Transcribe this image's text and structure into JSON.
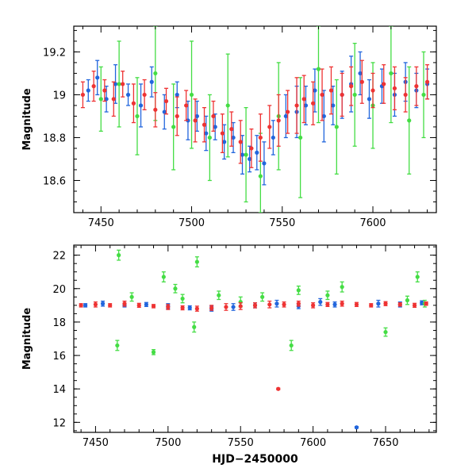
{
  "chart_data": [
    {
      "type": "scatter",
      "title": "",
      "xlabel": "",
      "ylabel": "Magnitude",
      "xlim": [
        7435,
        7635
      ],
      "ylim": [
        19.32,
        18.45
      ],
      "y_inverted": true,
      "xticks": [
        7450,
        7500,
        7550,
        7600
      ],
      "xticklabels": [
        "7450",
        "7500",
        "7550",
        "7600"
      ],
      "yticks": [
        18.6,
        18.8,
        19,
        19.2
      ],
      "yticklabels": [
        "18.6",
        "18.8",
        "19",
        "19.2"
      ],
      "grid": false,
      "legend": "none",
      "error_bars": true,
      "series": [
        {
          "color": "#2266dd",
          "x": [
            7443,
            7448,
            7453,
            7458,
            7465,
            7472,
            7478,
            7485,
            7492,
            7498,
            7503,
            7508,
            7513,
            7518,
            7523,
            7528,
            7532,
            7536,
            7540,
            7545,
            7552,
            7558,
            7563,
            7568,
            7573,
            7578,
            7583,
            7588,
            7593,
            7598,
            7605,
            7612,
            7618,
            7624,
            7630
          ],
          "y": [
            19.02,
            19.08,
            18.98,
            19.05,
            19.0,
            18.95,
            19.06,
            18.92,
            19.0,
            18.88,
            18.9,
            18.82,
            18.85,
            18.78,
            18.8,
            18.72,
            18.7,
            18.73,
            18.68,
            18.8,
            18.9,
            18.92,
            18.95,
            19.02,
            18.9,
            18.95,
            19.0,
            19.05,
            19.1,
            18.98,
            19.04,
            19.0,
            19.06,
            19.02,
            19.05
          ],
          "err": [
            0.05,
            0.08,
            0.06,
            0.09,
            0.05,
            0.1,
            0.07,
            0.08,
            0.06,
            0.09,
            0.07,
            0.08,
            0.06,
            0.08,
            0.07,
            0.09,
            0.06,
            0.08,
            0.1,
            0.08,
            0.1,
            0.12,
            0.09,
            0.1,
            0.12,
            0.09,
            0.11,
            0.13,
            0.1,
            0.09,
            0.08,
            0.1,
            0.09,
            0.08,
            0.07
          ]
        },
        {
          "color": "#44dd44",
          "x": [
            7450,
            7460,
            7470,
            7480,
            7490,
            7500,
            7510,
            7520,
            7530,
            7538,
            7548,
            7560,
            7570,
            7580,
            7590,
            7600,
            7610,
            7620,
            7628
          ],
          "y": [
            18.98,
            19.05,
            18.9,
            19.1,
            18.85,
            19.0,
            18.8,
            18.95,
            18.72,
            18.62,
            18.9,
            18.8,
            19.12,
            18.85,
            19.0,
            18.95,
            19.1,
            18.88,
            19.0
          ],
          "err": [
            0.15,
            0.2,
            0.18,
            0.22,
            0.2,
            0.25,
            0.2,
            0.24,
            0.22,
            0.2,
            0.25,
            0.28,
            0.25,
            0.22,
            0.24,
            0.2,
            0.23,
            0.25,
            0.2
          ]
        },
        {
          "color": "#ee3333",
          "x": [
            7440,
            7446,
            7452,
            7457,
            7462,
            7468,
            7474,
            7480,
            7486,
            7492,
            7497,
            7502,
            7507,
            7512,
            7517,
            7522,
            7527,
            7533,
            7538,
            7543,
            7548,
            7553,
            7558,
            7562,
            7567,
            7572,
            7577,
            7583,
            7588,
            7594,
            7600,
            7606,
            7612,
            7618,
            7624,
            7630
          ],
          "y": [
            19.0,
            19.04,
            19.02,
            18.98,
            19.05,
            18.96,
            19.0,
            18.93,
            18.97,
            18.9,
            18.95,
            18.88,
            18.86,
            18.9,
            18.82,
            18.84,
            18.78,
            18.75,
            18.8,
            18.85,
            18.88,
            18.92,
            18.95,
            18.98,
            18.96,
            19.0,
            19.02,
            19.0,
            19.04,
            19.06,
            19.02,
            19.05,
            19.03,
            19.0,
            19.04,
            19.06
          ],
          "err": [
            0.06,
            0.07,
            0.05,
            0.08,
            0.06,
            0.09,
            0.07,
            0.08,
            0.06,
            0.09,
            0.07,
            0.1,
            0.08,
            0.07,
            0.09,
            0.08,
            0.1,
            0.09,
            0.11,
            0.1,
            0.12,
            0.1,
            0.13,
            0.11,
            0.1,
            0.12,
            0.11,
            0.1,
            0.09,
            0.1,
            0.08,
            0.09,
            0.1,
            0.08,
            0.09,
            0.08
          ]
        }
      ]
    },
    {
      "type": "scatter",
      "title": "",
      "xlabel": "HJD−2450000",
      "ylabel": "Magnitude",
      "xlim": [
        7435,
        7685
      ],
      "ylim": [
        22.6,
        11.4
      ],
      "y_inverted": true,
      "xticks": [
        7450,
        7500,
        7550,
        7600,
        7650
      ],
      "xticklabels": [
        "7450",
        "7500",
        "7550",
        "7600",
        "7650"
      ],
      "yticks": [
        12,
        14,
        16,
        18,
        20,
        22
      ],
      "yticklabels": [
        "12",
        "14",
        "16",
        "18",
        "20",
        "22"
      ],
      "grid": false,
      "legend": "none",
      "error_bars": true,
      "series": [
        {
          "color": "#2266dd",
          "x": [
            7443,
            7455,
            7470,
            7485,
            7500,
            7515,
            7530,
            7545,
            7560,
            7575,
            7590,
            7605,
            7615,
            7630,
            7645,
            7660,
            7675
          ],
          "y": [
            19.0,
            19.1,
            19.0,
            19.05,
            18.95,
            18.85,
            18.8,
            18.9,
            19.0,
            19.1,
            18.95,
            19.2,
            19.05,
            11.7,
            19.1,
            19.05,
            19.15
          ],
          "err": [
            0.1,
            0.15,
            0.1,
            0.12,
            0.15,
            0.12,
            0.15,
            0.2,
            0.15,
            0.2,
            0.15,
            0.2,
            0.15,
            0.05,
            0.2,
            0.15,
            0.12
          ]
        },
        {
          "color": "#44dd44",
          "x": [
            7465,
            7466,
            7475,
            7490,
            7497,
            7505,
            7510,
            7518,
            7520,
            7535,
            7550,
            7565,
            7585,
            7590,
            7610,
            7620,
            7650,
            7665,
            7672,
            7677
          ],
          "y": [
            16.6,
            22.0,
            19.5,
            16.2,
            20.7,
            20.0,
            19.4,
            17.7,
            21.6,
            19.6,
            19.2,
            19.5,
            16.6,
            19.9,
            19.6,
            20.1,
            17.4,
            19.3,
            20.7,
            19.1
          ],
          "err": [
            0.3,
            0.3,
            0.25,
            0.15,
            0.3,
            0.25,
            0.25,
            0.3,
            0.3,
            0.25,
            0.3,
            0.25,
            0.3,
            0.25,
            0.25,
            0.3,
            0.25,
            0.25,
            0.3,
            0.2
          ]
        },
        {
          "color": "#ee3333",
          "x": [
            7440,
            7450,
            7460,
            7470,
            7480,
            7490,
            7500,
            7510,
            7520,
            7530,
            7540,
            7550,
            7560,
            7570,
            7576,
            7580,
            7590,
            7600,
            7610,
            7620,
            7630,
            7640,
            7650,
            7660,
            7670,
            7678
          ],
          "y": [
            19.0,
            19.05,
            19.0,
            19.1,
            19.0,
            18.95,
            18.9,
            18.85,
            18.8,
            18.85,
            18.9,
            18.95,
            19.0,
            19.05,
            14.0,
            19.05,
            19.1,
            19.0,
            19.05,
            19.1,
            19.05,
            19.0,
            19.1,
            19.05,
            19.0,
            19.1
          ],
          "err": [
            0.1,
            0.15,
            0.1,
            0.15,
            0.12,
            0.1,
            0.15,
            0.12,
            0.15,
            0.15,
            0.2,
            0.2,
            0.15,
            0.2,
            0.05,
            0.15,
            0.15,
            0.15,
            0.12,
            0.15,
            0.12,
            0.1,
            0.12,
            0.1,
            0.12,
            0.1
          ]
        }
      ]
    }
  ]
}
